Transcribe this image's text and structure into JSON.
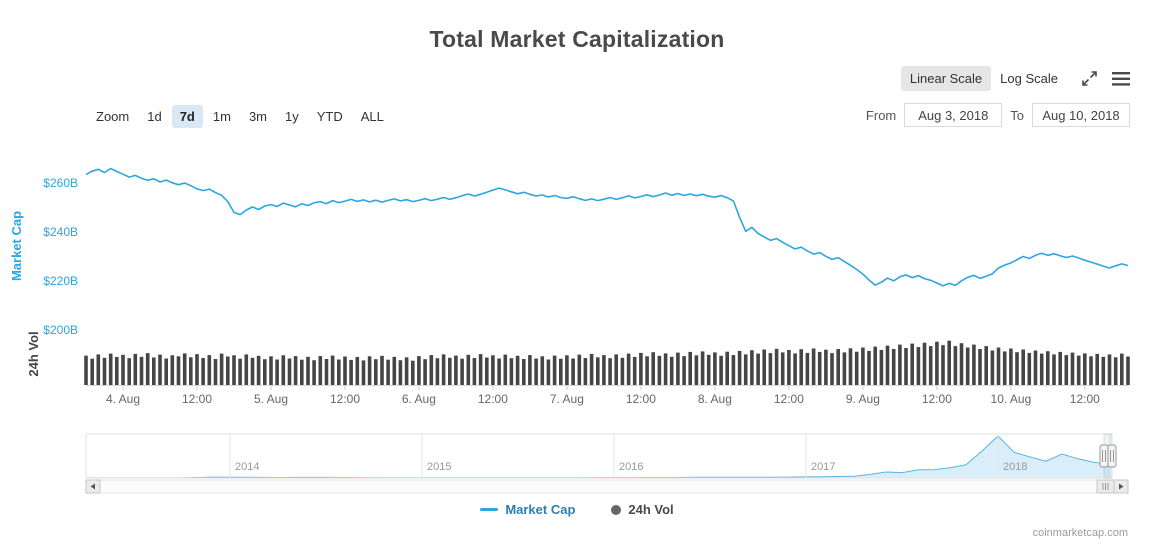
{
  "page": {
    "title": "Total Market Capitalization",
    "watermark": "coinmarketcap.com"
  },
  "scale_toggle": {
    "linear_label": "Linear Scale",
    "log_label": "Log Scale",
    "selected": "Linear Scale"
  },
  "zoom": {
    "label": "Zoom",
    "buttons": [
      "1d",
      "7d",
      "1m",
      "3m",
      "1y",
      "YTD",
      "ALL"
    ],
    "selected": "7d"
  },
  "range_inputs": {
    "from_label": "From",
    "from_value": "Aug 3, 2018",
    "to_label": "To",
    "to_value": "Aug 10, 2018"
  },
  "legend": {
    "items": [
      {
        "label": "Market Cap",
        "marker": "line",
        "color": "#2CA6DF",
        "text_color": "#2E7EB3"
      },
      {
        "label": "24h Vol",
        "marker": "circle",
        "color": "#666666",
        "text_color": "#4a4a4a"
      }
    ]
  },
  "colors": {
    "line": "#2CA6DF",
    "volume": "#454545",
    "axis_blue": "#2CA6DF",
    "nav_line": "#59B7E3",
    "nav_fill": "#D9EEF9",
    "axis_text": "#666666"
  },
  "chart_data": {
    "type": "line",
    "title": "Total Market Capitalization",
    "unit": "USD billions",
    "y_axis": {
      "title": "Market Cap",
      "tick_labels": [
        "$260B",
        "$240B",
        "$220B",
        "$200B"
      ],
      "tick_values": [
        260,
        240,
        220,
        200
      ],
      "ylim": [
        200,
        268
      ]
    },
    "volume_axis": {
      "title": "24h Vol"
    },
    "x_axis": {
      "tick_labels": [
        "4. Aug",
        "12:00",
        "5. Aug",
        "12:00",
        "6. Aug",
        "12:00",
        "7. Aug",
        "12:00",
        "8. Aug",
        "12:00",
        "9. Aug",
        "12:00",
        "10. Aug",
        "12:00"
      ],
      "range_start": "Aug 3, 2018 18:00",
      "range_end": "Aug 10, 2018 19:00",
      "interval": "1h"
    },
    "series": [
      {
        "name": "Market Cap",
        "type": "line",
        "color": "#2CA6DF",
        "values": [
          263.5,
          264.8,
          265.6,
          264.3,
          265.9,
          264.7,
          263.6,
          262.4,
          263.1,
          261.9,
          261.1,
          261.7,
          260.4,
          261.2,
          260.1,
          259.3,
          260.0,
          258.9,
          257.6,
          256.9,
          257.5,
          256.1,
          255.0,
          252.4,
          248.0,
          247.1,
          249.0,
          250.2,
          249.2,
          250.6,
          251.2,
          250.4,
          251.8,
          251.0,
          250.3,
          251.5,
          250.8,
          251.9,
          252.4,
          251.6,
          252.8,
          252.0,
          252.6,
          253.3,
          252.5,
          253.1,
          252.3,
          253.0,
          252.2,
          252.9,
          253.5,
          252.7,
          253.2,
          252.4,
          252.9,
          253.6,
          252.8,
          253.4,
          254.1,
          253.3,
          254.0,
          254.8,
          255.5,
          254.7,
          255.4,
          256.2,
          257.1,
          257.9,
          257.2,
          256.4,
          255.6,
          256.2,
          255.4,
          254.7,
          255.1,
          254.3,
          254.9,
          254.1,
          253.7,
          254.4,
          253.6,
          252.9,
          253.5,
          252.8,
          253.4,
          254.1,
          253.3,
          254.0,
          254.8,
          253.9,
          254.5,
          255.2,
          254.4,
          255.1,
          255.9,
          255.0,
          255.7,
          254.9,
          255.5,
          254.8,
          255.4,
          254.6,
          254.2,
          254.9,
          254.0,
          252.7,
          246.0,
          240.3,
          241.9,
          239.4,
          238.0,
          236.6,
          237.3,
          235.8,
          234.4,
          233.1,
          233.8,
          232.3,
          231.0,
          231.6,
          230.1,
          228.8,
          229.5,
          227.9,
          226.4,
          224.7,
          222.8,
          220.4,
          218.3,
          219.5,
          221.2,
          220.1,
          221.7,
          222.5,
          221.4,
          222.2,
          221.0,
          220.3,
          219.2,
          218.0,
          219.0,
          218.2,
          220.1,
          221.5,
          222.3,
          221.1,
          221.9,
          223.0,
          225.3,
          226.5,
          227.4,
          228.7,
          230.0,
          229.2,
          230.5,
          231.3,
          230.5,
          231.1,
          230.3,
          229.6,
          230.2,
          229.4,
          228.5,
          227.7,
          226.9,
          226.1,
          225.3,
          226.2,
          227.0,
          226.3
        ]
      },
      {
        "name": "24h Vol",
        "type": "column",
        "color": "#454545",
        "values": [
          12.1,
          10.8,
          12.6,
          11.2,
          12.9,
          11.5,
          12.4,
          11.0,
          12.8,
          11.6,
          13.1,
          11.3,
          12.5,
          10.9,
          12.2,
          11.8,
          13.0,
          11.4,
          12.7,
          11.1,
          12.3,
          10.7,
          12.9,
          11.7,
          12.2,
          10.8,
          12.6,
          11.2,
          12.0,
          10.6,
          11.8,
          10.5,
          12.2,
          10.9,
          11.9,
          10.4,
          11.6,
          10.2,
          11.9,
          10.7,
          12.1,
          10.5,
          11.7,
          10.3,
          11.5,
          10.1,
          11.8,
          10.6,
          12.0,
          10.4,
          11.6,
          10.2,
          11.4,
          10.0,
          11.9,
          10.6,
          12.3,
          11.0,
          12.6,
          11.2,
          12.1,
          10.8,
          12.4,
          11.1,
          12.7,
          11.3,
          12.2,
          10.9,
          12.5,
          11.0,
          12.0,
          10.7,
          12.3,
          10.9,
          11.8,
          10.5,
          12.1,
          10.8,
          12.2,
          10.9,
          12.5,
          11.1,
          12.8,
          11.4,
          12.3,
          11.0,
          12.6,
          11.2,
          12.9,
          11.5,
          13.2,
          11.8,
          13.5,
          12.0,
          13.0,
          11.6,
          13.3,
          11.9,
          13.6,
          12.2,
          13.8,
          12.4,
          13.4,
          12.0,
          13.7,
          12.3,
          14.0,
          12.6,
          14.3,
          12.9,
          14.6,
          13.1,
          14.9,
          13.4,
          14.4,
          13.0,
          14.7,
          13.2,
          15.0,
          13.6,
          14.5,
          13.1,
          14.8,
          13.4,
          15.1,
          13.7,
          15.4,
          14.0,
          15.8,
          14.4,
          16.2,
          14.8,
          16.6,
          15.2,
          17.0,
          15.6,
          17.4,
          16.0,
          17.8,
          16.4,
          18.2,
          16.0,
          17.2,
          15.4,
          16.6,
          14.8,
          16.0,
          14.2,
          15.4,
          13.8,
          15.0,
          13.5,
          14.6,
          13.2,
          14.2,
          12.9,
          13.9,
          12.6,
          13.6,
          12.3,
          13.3,
          12.1,
          13.0,
          11.8,
          12.8,
          11.6,
          12.6,
          11.4,
          12.9,
          11.7
        ]
      }
    ],
    "navigator": {
      "start": "2013-04",
      "end": "2018-08",
      "year_labels": [
        "2014",
        "2015",
        "2016",
        "2017",
        "2018"
      ],
      "year_indices": [
        9,
        21,
        33,
        45,
        57
      ],
      "monthly_values": [
        1.5,
        1.6,
        1.4,
        1.1,
        1.3,
        1.5,
        2.0,
        8.0,
        15.0,
        13.5,
        11.0,
        10.5,
        9.0,
        9.5,
        10.8,
        9.8,
        7.9,
        6.8,
        5.6,
        5.3,
        4.8,
        3.9,
        3.6,
        3.8,
        3.5,
        3.6,
        3.7,
        3.9,
        3.4,
        3.5,
        4.2,
        5.0,
        6.5,
        7.0,
        7.5,
        8.2,
        8.5,
        9.0,
        11.5,
        12.2,
        11.5,
        12.0,
        12.8,
        13.7,
        15.5,
        17.5,
        21.0,
        25.0,
        30.0,
        60.0,
        100.0,
        90.0,
        135.0,
        140.0,
        170.0,
        220.0,
        450.0,
        700.0,
        430.0,
        350.0,
        280.0,
        400.0,
        320.0,
        260.0,
        228.0
      ]
    }
  }
}
